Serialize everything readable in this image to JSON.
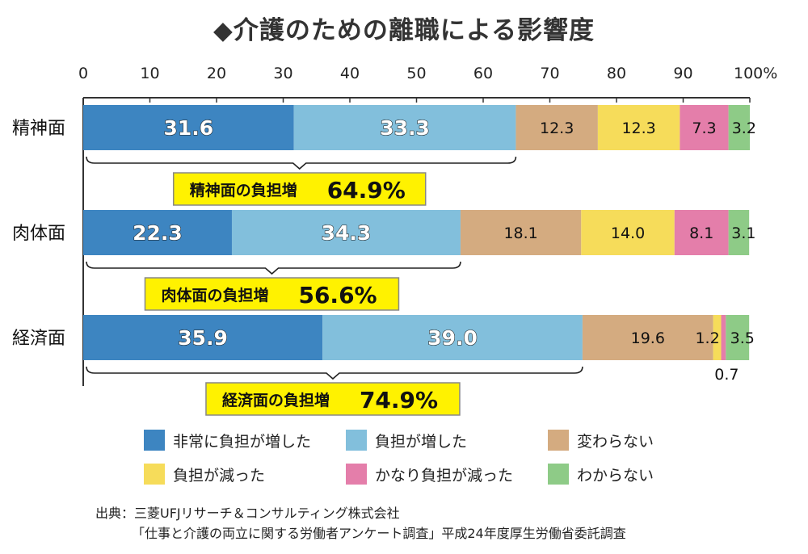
{
  "title": "◆介護のための離職による影響度",
  "legend_title_icon": "diamond-icon",
  "source": {
    "line1": "出典：三菱UFJリサーチ＆コンサルティング株式会社",
    "line2": "「仕事と介護の両立に関する労働者アンケート調査」平成24年度厚生労働省委託調査"
  },
  "chart_data": {
    "type": "bar",
    "orientation": "horizontal",
    "stacked": true,
    "title": "◆介護のための離職による影響度",
    "x_ticks": [
      "0",
      "10",
      "20",
      "30",
      "40",
      "50",
      "60",
      "70",
      "80",
      "90",
      "100%"
    ],
    "xlim": [
      0,
      100
    ],
    "categories": [
      "精神面",
      "肉体面",
      "経済面"
    ],
    "series": [
      {
        "name": "非常に負担が増した",
        "color": "#3d85c1",
        "values": [
          31.6,
          22.3,
          35.9
        ],
        "labels": [
          "31.6",
          "22.3",
          "35.9"
        ]
      },
      {
        "name": "負担が増した",
        "color": "#82bfdc",
        "values": [
          33.3,
          34.3,
          39.0
        ],
        "labels": [
          "33.3",
          "34.3",
          "39.0"
        ]
      },
      {
        "name": "変わらない",
        "color": "#d4ab80",
        "values": [
          12.3,
          18.1,
          19.6
        ],
        "labels": [
          "12.3",
          "18.1",
          "19.6"
        ]
      },
      {
        "name": "負担が減った",
        "color": "#f6dc5a",
        "values": [
          12.3,
          14.0,
          1.2
        ],
        "labels": [
          "12.3",
          "14.0",
          "1.2"
        ]
      },
      {
        "name": "かなり負担が減った",
        "color": "#e47eaa",
        "values": [
          7.3,
          8.1,
          0.7
        ],
        "labels": [
          "7.3",
          "8.1",
          "0.7"
        ]
      },
      {
        "name": "わからない",
        "color": "#8ecb87",
        "values": [
          3.2,
          3.1,
          3.5
        ],
        "labels": [
          "3.2",
          "3.1",
          "3.5"
        ]
      }
    ],
    "annotations": [
      {
        "category": "精神面",
        "label": "精神面の負担増",
        "value_text": "64.9%"
      },
      {
        "category": "肉体面",
        "label": "肉体面の負担増",
        "value_text": "56.6%"
      },
      {
        "category": "経済面",
        "label": "経済面の負担増",
        "value_text": "74.9%"
      }
    ],
    "colors": {
      "callout_fill": "#fff200",
      "callout_border": "#888888",
      "axis": "#333333"
    }
  }
}
